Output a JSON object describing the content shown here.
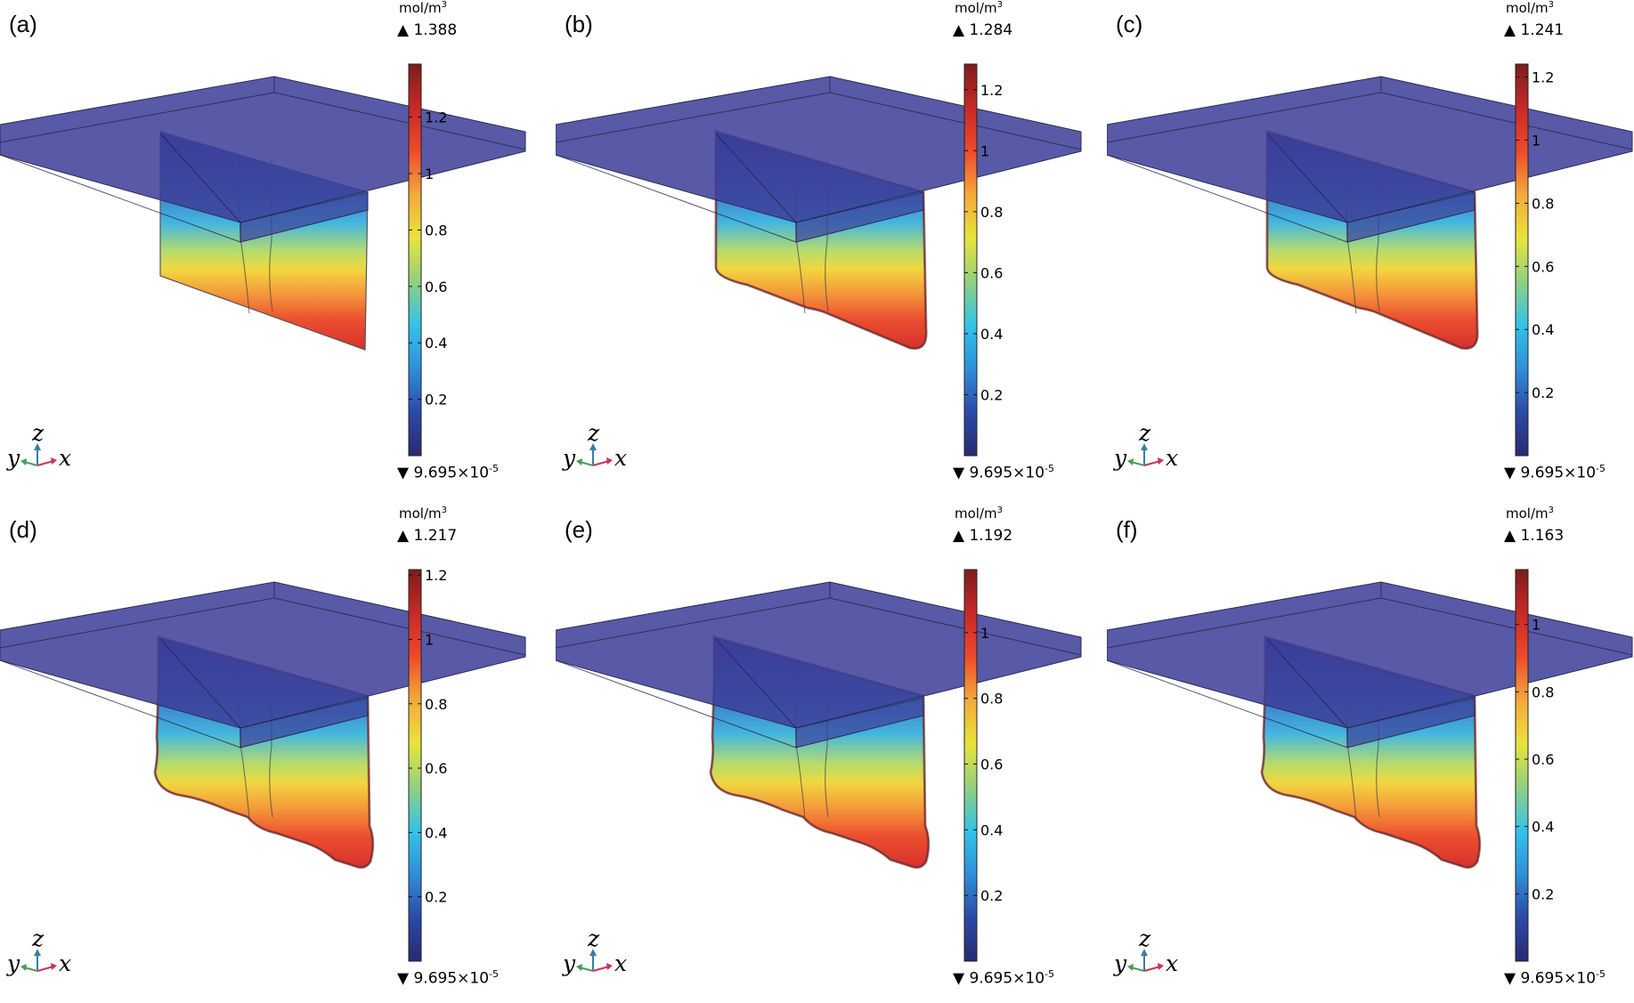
{
  "chart_data": [
    {
      "type": "heatmap",
      "panel_label": "(a)",
      "unit": "mol/m",
      "unit_exponent": "3",
      "max_value": "1.388",
      "min_mantissa": "9.695×10",
      "min_exponent": "-5",
      "colorbar_ticks": [
        "1.2",
        "1",
        "0.8",
        "0.6",
        "0.4",
        "0.2"
      ],
      "colorbar_tick_values": [
        1.2,
        1.0,
        0.8,
        0.6,
        0.4,
        0.2
      ],
      "colorbar_range": [
        9.695e-05,
        1.388
      ],
      "axis_letters": {
        "z": "z",
        "y": "y",
        "x": "x"
      },
      "colormap": [
        "#2a2a70",
        "#2b4aa8",
        "#2f8fd8",
        "#33c3e8",
        "#92d07f",
        "#e8e43a",
        "#f4a93b",
        "#ee4a2c",
        "#c62a28",
        "#7c1d1d"
      ],
      "slab_color": "#3c3f98",
      "bottom_shape": "flat"
    },
    {
      "type": "heatmap",
      "panel_label": "(b)",
      "unit": "mol/m",
      "unit_exponent": "3",
      "max_value": "1.284",
      "min_mantissa": "9.695×10",
      "min_exponent": "-5",
      "colorbar_ticks": [
        "1.2",
        "1",
        "0.8",
        "0.6",
        "0.4",
        "0.2"
      ],
      "colorbar_tick_values": [
        1.2,
        1.0,
        0.8,
        0.6,
        0.4,
        0.2
      ],
      "colorbar_range": [
        9.695e-05,
        1.284
      ],
      "axis_letters": {
        "z": "z",
        "y": "y",
        "x": "x"
      },
      "colormap": [
        "#2a2a70",
        "#2b4aa8",
        "#2f8fd8",
        "#33c3e8",
        "#92d07f",
        "#e8e43a",
        "#f4a93b",
        "#ee4a2c",
        "#c62a28",
        "#7c1d1d"
      ],
      "slab_color": "#3c3f98",
      "bottom_shape": "rounded"
    },
    {
      "type": "heatmap",
      "panel_label": "(c)",
      "unit": "mol/m",
      "unit_exponent": "3",
      "max_value": "1.241",
      "min_mantissa": "9.695×10",
      "min_exponent": "-5",
      "colorbar_ticks": [
        "1.2",
        "1",
        "0.8",
        "0.6",
        "0.4",
        "0.2"
      ],
      "colorbar_tick_values": [
        1.2,
        1.0,
        0.8,
        0.6,
        0.4,
        0.2
      ],
      "colorbar_range": [
        9.695e-05,
        1.241
      ],
      "axis_letters": {
        "z": "z",
        "y": "y",
        "x": "x"
      },
      "colormap": [
        "#2a2a70",
        "#2b4aa8",
        "#2f8fd8",
        "#33c3e8",
        "#92d07f",
        "#e8e43a",
        "#f4a93b",
        "#ee4a2c",
        "#c62a28",
        "#7c1d1d"
      ],
      "slab_color": "#3c3f98",
      "bottom_shape": "rounded"
    },
    {
      "type": "heatmap",
      "panel_label": "(d)",
      "unit": "mol/m",
      "unit_exponent": "3",
      "max_value": "1.217",
      "min_mantissa": "9.695×10",
      "min_exponent": "-5",
      "colorbar_ticks": [
        "1.2",
        "1",
        "0.8",
        "0.6",
        "0.4",
        "0.2"
      ],
      "colorbar_tick_values": [
        1.2,
        1.0,
        0.8,
        0.6,
        0.4,
        0.2
      ],
      "colorbar_range": [
        9.695e-05,
        1.217
      ],
      "axis_letters": {
        "z": "z",
        "y": "y",
        "x": "x"
      },
      "colormap": [
        "#2a2a70",
        "#2b4aa8",
        "#2f8fd8",
        "#33c3e8",
        "#92d07f",
        "#e8e43a",
        "#f4a93b",
        "#ee4a2c",
        "#c62a28",
        "#7c1d1d"
      ],
      "slab_color": "#3c3f98",
      "bottom_shape": "wavy"
    },
    {
      "type": "heatmap",
      "panel_label": "(e)",
      "unit": "mol/m",
      "unit_exponent": "3",
      "max_value": "1.192",
      "min_mantissa": "9.695×10",
      "min_exponent": "-5",
      "colorbar_ticks": [
        "1",
        "0.8",
        "0.6",
        "0.4",
        "0.2"
      ],
      "colorbar_tick_values": [
        1.0,
        0.8,
        0.6,
        0.4,
        0.2
      ],
      "colorbar_range": [
        9.695e-05,
        1.192
      ],
      "axis_letters": {
        "z": "z",
        "y": "y",
        "x": "x"
      },
      "colormap": [
        "#2a2a70",
        "#2b4aa8",
        "#2f8fd8",
        "#33c3e8",
        "#92d07f",
        "#e8e43a",
        "#f4a93b",
        "#ee4a2c",
        "#c62a28",
        "#7c1d1d"
      ],
      "slab_color": "#3c3f98",
      "bottom_shape": "wavy"
    },
    {
      "type": "heatmap",
      "panel_label": "(f)",
      "unit": "mol/m",
      "unit_exponent": "3",
      "max_value": "1.163",
      "min_mantissa": "9.695×10",
      "min_exponent": "-5",
      "colorbar_ticks": [
        "1",
        "0.8",
        "0.6",
        "0.4",
        "0.2"
      ],
      "colorbar_tick_values": [
        1.0,
        0.8,
        0.6,
        0.4,
        0.2
      ],
      "colorbar_range": [
        9.695e-05,
        1.163
      ],
      "axis_letters": {
        "z": "z",
        "y": "y",
        "x": "x"
      },
      "colormap": [
        "#2a2a70",
        "#2b4aa8",
        "#2f8fd8",
        "#33c3e8",
        "#92d07f",
        "#e8e43a",
        "#f4a93b",
        "#ee4a2c",
        "#c62a28",
        "#7c1d1d"
      ],
      "slab_color": "#3c3f98",
      "bottom_shape": "wavy"
    }
  ]
}
